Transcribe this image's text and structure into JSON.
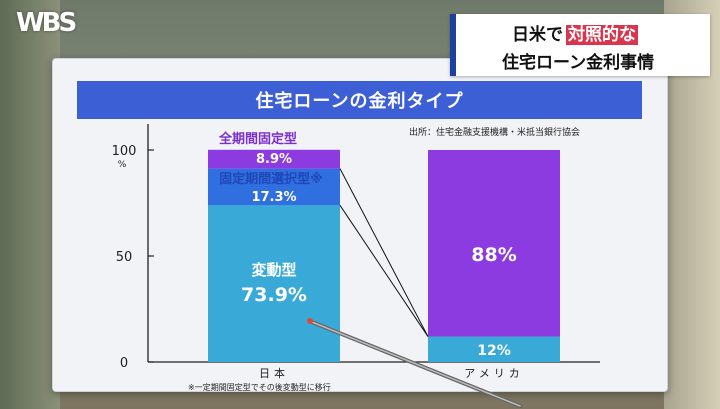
{
  "broadcast": {
    "logo": "WBS",
    "caption_prefix": "日米で",
    "caption_highlight": "対照的な",
    "caption_line2": "住宅ローン金利事情"
  },
  "board": {
    "title": "住宅ローンの金利タイプ",
    "source": "出所：住宅金融支援機構・米抵当銀行協会",
    "footnote": "※一定期間固定型でその後変動型に移行"
  },
  "chart_data": {
    "type": "bar",
    "stacked": true,
    "categories": [
      "日本",
      "アメリカ"
    ],
    "ylim": [
      0,
      100
    ],
    "yticks": [
      0,
      50,
      100
    ],
    "y_unit": "%",
    "grid": false,
    "series": [
      {
        "name": "変動型",
        "values": [
          73.9,
          12
        ],
        "labels": [
          "73.9%",
          "12%"
        ],
        "color": "#39a9d8"
      },
      {
        "name": "固定期間選択型※",
        "values": [
          17.3,
          0
        ],
        "labels": [
          "17.3%",
          ""
        ],
        "color": "#2f6fe0"
      },
      {
        "name": "全期間固定型",
        "values": [
          8.9,
          88
        ],
        "labels": [
          "8.9%",
          "88%"
        ],
        "color": "#8b3be0"
      }
    ]
  },
  "colors": {
    "title_bar": "#3d5fd6",
    "caption_highlight": "#d7364d",
    "purple_label": "#7a2fd0",
    "blue_label": "#2146b8"
  }
}
